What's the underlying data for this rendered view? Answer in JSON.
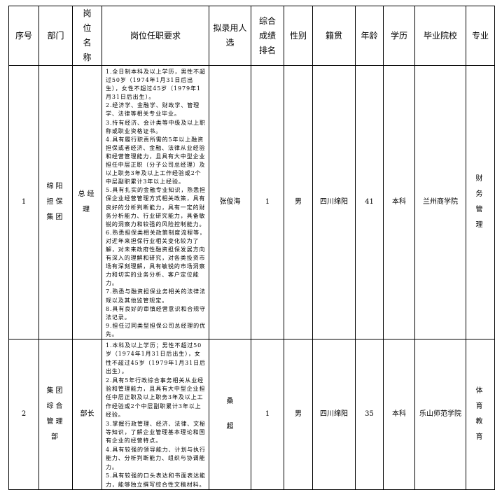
{
  "headers": [
    "序号",
    "部门",
    "岗位名称",
    "岗位任职要求",
    "拟录用人选",
    "综合成绩排名",
    "性别",
    "籍贯",
    "年龄",
    "学历",
    "毕业院校",
    "专业"
  ],
  "rows": [
    {
      "no": "1",
      "department": "绵阳担保集团",
      "position": "总经理",
      "requirements": [
        "1.全日制本科及以上学历，男性不超过50岁（1974年1月31日后出生），女性不超过45岁（1979年1月31日后出生）。",
        "2.经济学、金融学、财政学、管理学、法律等相关专业毕业。",
        "3.持有经济、会计类等中级及以上职称或职业资格证书。",
        "4.具有履行职责所需的5年以上融资担保或者经济、金融、法律从业经验和经营管理能力，且具有大中型企业担任中层正职（分子公司总经理）及以上职务3年及以上工作经验或2个中层副职累计3年以上经验。",
        "5.具有扎实的金融专业知识，熟悉担保企业经营管理方式相关政策，具有良好的分析判断能力，具有一定的财务分析能力、行业研究能力，具备敏锐的洞察力和较强的风险控制能力。",
        "6.熟悉担保类相关政策制度流程等，对近年来担保行业相关变化较为了解，对未来政府性融资担保发展方向有深入的理解和研究，对各类投资市场有深刻理解，具有敏锐的市场洞察力和切实的业务分析、客户定位能力。",
        "7.熟悉与融资担保业务相关的法律法规以及其他监管规定。",
        "8.具有良好的审慎经营意识和合规守法记录。",
        "9.担任过同类型担保公司总经理的优先。"
      ],
      "candidate": "张俊海",
      "rank": "1",
      "gender": "男",
      "origin": "四川绵阳",
      "age": "41",
      "education": "本科",
      "school": "兰州商学院",
      "major": "财务管理"
    },
    {
      "no": "2",
      "department": "集团综合管理部",
      "position": "部长",
      "requirements": [
        "1.本科及以上学历；男性不超过50岁（1974年1月31日后出生），女性不超过45岁（1979年1月31日后出生）。",
        "2.具有5年行政综合事务相关从业经验和管理能力，且具有大中型企业担任中层正职及以上职务3年及以上工作经验或2个中层副职累计3年以上经验。",
        "3.掌握行政管理、经济、法律、文秘等知识，了解企业管理基本理论和国有企业的经营特点。",
        "4.具有较强的领导能力、计划与执行能力、分析判断能力、组织与协调能力。",
        "5.具有较强的口头表达和书面表达能力，能够独立撰写综合性文稿材料。"
      ],
      "candidate": "桑超",
      "rank": "1",
      "gender": "男",
      "origin": "四川绵阳",
      "age": "35",
      "education": "本科",
      "school": "乐山师范学院",
      "major": "体育教育"
    }
  ]
}
